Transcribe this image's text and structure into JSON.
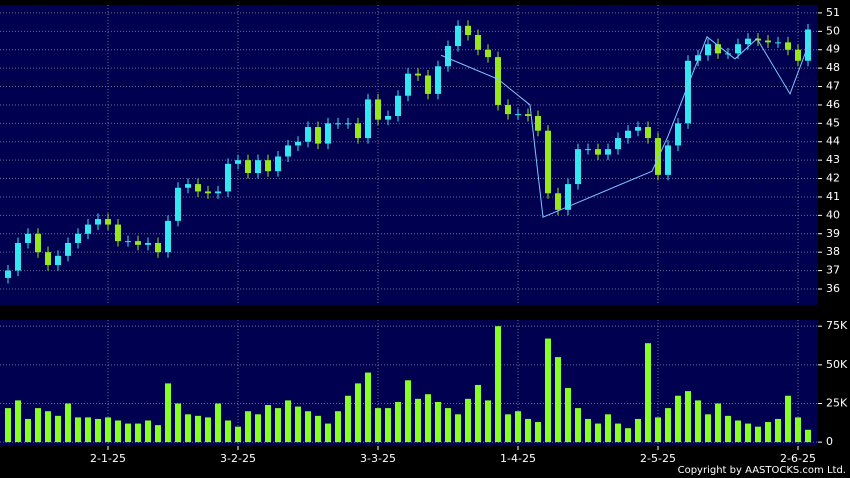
{
  "chart_data": [
    {
      "type": "candlestick",
      "xlim": [
        -0.8,
        81
      ],
      "ylim": [
        35.13,
        51.43
      ],
      "yticks": [
        36,
        37,
        38,
        39,
        40,
        41,
        42,
        43,
        44,
        45,
        46,
        47,
        48,
        49,
        50,
        51
      ],
      "grid": true,
      "up_color": "#33e6f0",
      "down_color": "#99e61a",
      "open": [
        36.6,
        37.0,
        38.5,
        39.0,
        38.0,
        37.3,
        37.8,
        38.5,
        39.0,
        39.5,
        39.8,
        39.5,
        38.6,
        38.6,
        38.4,
        38.5,
        38.0,
        39.7,
        41.5,
        41.7,
        41.3,
        41.2,
        41.3,
        42.8,
        43.0,
        42.3,
        43.0,
        42.4,
        43.2,
        43.8,
        44.0,
        44.8,
        43.9,
        45.0,
        45.0,
        45.0,
        44.2,
        46.3,
        45.2,
        45.4,
        46.5,
        47.7,
        47.6,
        46.6,
        48.1,
        49.2,
        50.3,
        49.8,
        49.0,
        48.6,
        46.0,
        45.5,
        45.5,
        45.4,
        44.6,
        41.2,
        40.3,
        41.7,
        43.6,
        43.6,
        43.3,
        43.6,
        44.2,
        44.6,
        44.8,
        44.2,
        42.2,
        43.8,
        45.0,
        48.4,
        48.7,
        49.3,
        48.8,
        48.8,
        49.3,
        49.6,
        49.5,
        49.4,
        49.4,
        49.0,
        48.4
      ],
      "high": [
        37.3,
        38.8,
        39.3,
        39.3,
        38.3,
        38.1,
        38.8,
        39.3,
        39.8,
        40.1,
        40.1,
        39.8,
        38.9,
        38.9,
        38.8,
        38.8,
        40.0,
        41.8,
        42.0,
        42.0,
        41.6,
        41.6,
        43.1,
        43.3,
        43.3,
        43.3,
        43.3,
        43.5,
        44.1,
        44.3,
        45.1,
        45.1,
        45.3,
        45.3,
        45.3,
        45.3,
        46.6,
        46.6,
        45.7,
        46.8,
        48.0,
        48.0,
        47.9,
        48.4,
        49.5,
        50.6,
        50.6,
        50.1,
        49.3,
        48.9,
        46.3,
        45.8,
        45.8,
        45.7,
        44.9,
        41.5,
        42.0,
        43.9,
        43.9,
        43.9,
        43.9,
        44.5,
        44.9,
        45.1,
        45.1,
        44.5,
        44.1,
        45.3,
        48.7,
        49.0,
        49.6,
        49.6,
        49.1,
        49.6,
        49.9,
        49.9,
        49.8,
        49.7,
        49.7,
        49.3,
        50.4
      ],
      "low": [
        36.3,
        36.7,
        38.2,
        37.7,
        37.0,
        37.0,
        37.5,
        38.2,
        38.7,
        39.2,
        39.2,
        38.3,
        38.3,
        38.1,
        38.1,
        37.7,
        37.7,
        39.4,
        41.2,
        41.0,
        40.9,
        40.9,
        41.0,
        42.5,
        42.0,
        42.0,
        42.1,
        42.1,
        42.9,
        43.5,
        43.7,
        43.6,
        43.6,
        44.7,
        44.7,
        43.9,
        43.9,
        44.9,
        44.9,
        45.1,
        46.2,
        47.3,
        46.3,
        46.3,
        47.8,
        48.9,
        49.5,
        48.7,
        48.3,
        45.7,
        45.2,
        45.2,
        45.1,
        44.3,
        40.9,
        40.0,
        40.0,
        41.4,
        43.3,
        43.0,
        43.0,
        43.3,
        43.9,
        44.3,
        43.9,
        41.9,
        41.9,
        43.5,
        44.7,
        48.1,
        48.4,
        48.5,
        48.5,
        48.5,
        49.0,
        49.2,
        49.1,
        49.1,
        48.7,
        48.1,
        48.1
      ],
      "close": [
        37.0,
        38.5,
        39.0,
        38.0,
        37.3,
        37.8,
        38.5,
        39.0,
        39.5,
        39.8,
        39.5,
        38.6,
        38.6,
        38.4,
        38.5,
        38.0,
        39.7,
        41.5,
        41.7,
        41.3,
        41.2,
        41.3,
        42.8,
        43.0,
        42.3,
        43.0,
        42.4,
        43.2,
        43.8,
        44.0,
        44.8,
        43.9,
        45.0,
        45.0,
        45.0,
        44.2,
        46.3,
        45.2,
        45.4,
        46.5,
        47.7,
        47.6,
        46.6,
        48.1,
        49.2,
        50.3,
        49.8,
        49.0,
        48.6,
        46.0,
        45.5,
        45.5,
        45.4,
        44.6,
        41.2,
        40.3,
        41.7,
        43.6,
        43.6,
        43.3,
        43.6,
        44.2,
        44.6,
        44.8,
        44.2,
        42.2,
        43.8,
        45.0,
        48.4,
        48.7,
        49.3,
        48.8,
        48.8,
        49.3,
        49.6,
        49.5,
        49.4,
        49.4,
        49.0,
        48.4,
        50.1
      ],
      "overlay": {
        "color": "#7fc8ff",
        "x": [
          43.3,
          49,
          52.2,
          53.5,
          64.4,
          66,
          69.9,
          72.7,
          74.9,
          78.2,
          80.2
        ],
        "values": [
          48.7,
          47.4,
          46.0,
          39.9,
          42.4,
          44.3,
          49.7,
          48.5,
          49.6,
          46.6,
          49.5
        ]
      }
    },
    {
      "type": "bar",
      "xlim": [
        -0.8,
        81
      ],
      "ylim": [
        -2500,
        79000
      ],
      "color": "#88ff22",
      "grid": true,
      "yticks": [
        0,
        {
          "value": 25000,
          "label": "25K"
        },
        {
          "value": 50000,
          "label": "50K"
        },
        {
          "value": 75000,
          "label": "75K"
        }
      ],
      "xticks": [
        {
          "value": 10,
          "label": "2-1-25"
        },
        {
          "value": 23,
          "label": "3-2-25"
        },
        {
          "value": 37,
          "label": "3-3-25"
        },
        {
          "value": 51,
          "label": "1-4-25"
        },
        {
          "value": 65,
          "label": "2-5-25"
        },
        {
          "value": 79,
          "label": "2-6-25"
        }
      ],
      "values": [
        22000,
        27000,
        15000,
        22000,
        20000,
        17000,
        25000,
        16000,
        16000,
        15000,
        16000,
        14000,
        12000,
        12000,
        14000,
        11000,
        38000,
        25000,
        18000,
        17000,
        16000,
        25000,
        14000,
        10000,
        20000,
        18000,
        24000,
        22000,
        27000,
        23000,
        20000,
        17000,
        12000,
        20000,
        30000,
        38000,
        45000,
        22000,
        22000,
        26000,
        40000,
        28000,
        31000,
        26000,
        22000,
        18000,
        28000,
        37000,
        27000,
        75000,
        18000,
        20000,
        15000,
        13000,
        67000,
        55000,
        35000,
        22000,
        15000,
        12000,
        18000,
        12000,
        9000,
        15000,
        64000,
        16000,
        22000,
        30000,
        33000,
        27000,
        18000,
        25000,
        17000,
        14000,
        12000,
        10000,
        13000,
        15000,
        30000,
        16000,
        8000
      ]
    }
  ],
  "footer": "Copyright by AASTOCKS.com Ltd."
}
